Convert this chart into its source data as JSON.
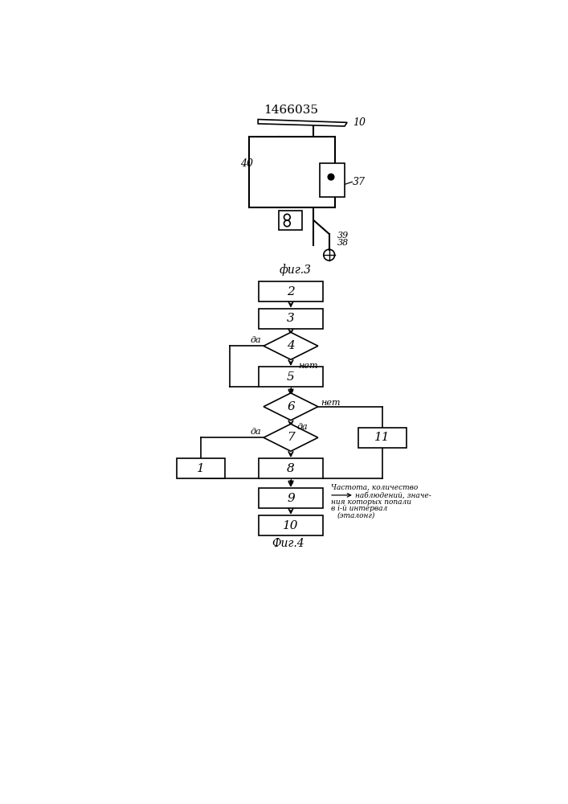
{
  "title": "1466035",
  "fig3_label": "фиг.3",
  "fig4_label": "Фиг.4",
  "lbl_da": "да",
  "lbl_net": "нет",
  "ann_line1": "Частота, количество",
  "ann_line2": "наблюдений, значе-",
  "ann_line3": "ния которых попали",
  "ann_line4": "в i-й интервал",
  "ann_line5": "(эталонг)",
  "background_color": "#ffffff",
  "line_color": "#000000"
}
